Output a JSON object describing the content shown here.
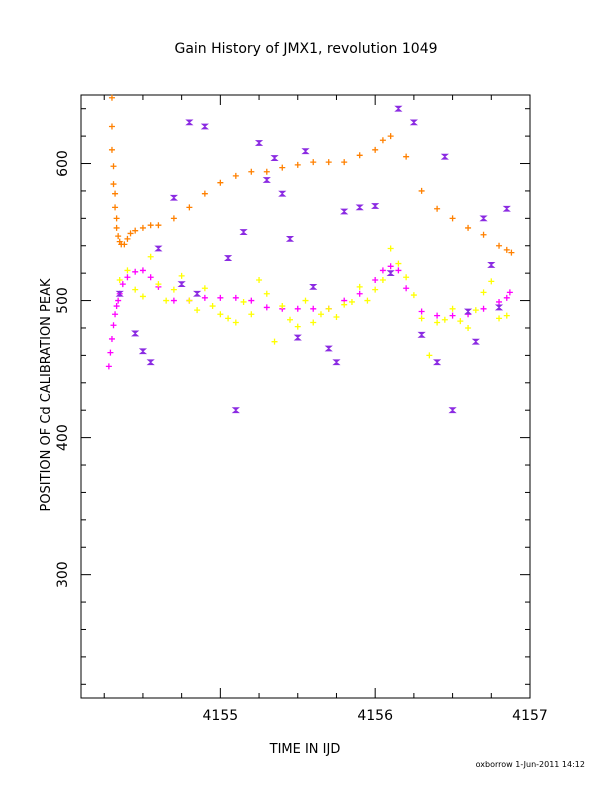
{
  "chart_data": {
    "type": "scatter",
    "title": "Gain History of JMX1, revolution 1049",
    "xlabel": "TIME IN IJD",
    "ylabel": "POSITION OF Cd CALIBRATION PEAK",
    "xlim": [
      4154.1,
      4157.0
    ],
    "ylim": [
      210,
      650
    ],
    "xticks": [
      4155,
      4156,
      4157
    ],
    "yticks": [
      300,
      400,
      500,
      600
    ],
    "footer": "oxborrow  1-Jun-2011 14:12",
    "series": [
      {
        "color": "#ff8000",
        "marker": "plus",
        "x": [
          4154.3,
          4154.3,
          4154.3,
          4154.31,
          4154.31,
          4154.32,
          4154.32,
          4154.33,
          4154.33,
          4154.34,
          4154.35,
          4154.36,
          4154.38,
          4154.4,
          4154.42,
          4154.45,
          4154.5,
          4154.55,
          4154.6,
          4154.7,
          4154.8,
          4154.9,
          4155.0,
          4155.1,
          4155.2,
          4155.3,
          4155.4,
          4155.5,
          4155.6,
          4155.7,
          4155.8,
          4155.9,
          4156.0,
          4156.05,
          4156.1,
          4156.2,
          4156.3,
          4156.4,
          4156.5,
          4156.6,
          4156.7,
          4156.8,
          4156.85,
          4156.88
        ],
        "y": [
          648,
          627,
          610,
          598,
          585,
          578,
          568,
          560,
          553,
          547,
          543,
          541,
          541,
          545,
          549,
          551,
          553,
          555,
          555,
          560,
          568,
          578,
          586,
          591,
          594,
          594,
          597,
          599,
          601,
          601,
          601,
          606,
          610,
          617,
          620,
          605,
          580,
          567,
          560,
          553,
          548,
          540,
          537,
          535
        ]
      },
      {
        "color": "#ff00ff",
        "marker": "plus",
        "x": [
          4154.28,
          4154.29,
          4154.3,
          4154.31,
          4154.32,
          4154.33,
          4154.34,
          4154.35,
          4154.37,
          4154.4,
          4154.45,
          4154.5,
          4154.55,
          4154.6,
          4154.7,
          4154.8,
          4154.9,
          4155.0,
          4155.1,
          4155.2,
          4155.3,
          4155.4,
          4155.5,
          4155.6,
          4155.7,
          4155.8,
          4155.9,
          4156.0,
          4156.05,
          4156.1,
          4156.15,
          4156.2,
          4156.3,
          4156.4,
          4156.5,
          4156.6,
          4156.7,
          4156.8,
          4156.85,
          4156.87
        ],
        "y": [
          452,
          462,
          472,
          482,
          490,
          496,
          500,
          505,
          512,
          517,
          521,
          522,
          517,
          510,
          500,
          500,
          502,
          502,
          502,
          500,
          495,
          494,
          494,
          494,
          494,
          500,
          505,
          515,
          522,
          525,
          522,
          509,
          492,
          489,
          489,
          490,
          494,
          499,
          502,
          506
        ]
      },
      {
        "color": "#ffff00",
        "marker": "plus",
        "x": [
          4154.35,
          4154.4,
          4154.45,
          4154.5,
          4154.55,
          4154.6,
          4154.65,
          4154.7,
          4154.75,
          4154.8,
          4154.85,
          4154.9,
          4154.95,
          4155.0,
          4155.05,
          4155.1,
          4155.15,
          4155.2,
          4155.25,
          4155.3,
          4155.35,
          4155.4,
          4155.45,
          4155.5,
          4155.55,
          4155.6,
          4155.65,
          4155.7,
          4155.75,
          4155.8,
          4155.85,
          4155.9,
          4155.95,
          4156.0,
          4156.05,
          4156.1,
          4156.15,
          4156.2,
          4156.25,
          4156.3,
          4156.35,
          4156.4,
          4156.45,
          4156.5,
          4156.55,
          4156.6,
          4156.65,
          4156.7,
          4156.75,
          4156.8,
          4156.85
        ],
        "y": [
          515,
          522,
          508,
          503,
          532,
          512,
          500,
          508,
          518,
          500,
          493,
          509,
          496,
          490,
          487,
          484,
          499,
          490,
          515,
          505,
          470,
          496,
          486,
          481,
          500,
          484,
          490,
          494,
          488,
          497,
          499,
          510,
          500,
          508,
          515,
          538,
          527,
          517,
          504,
          487,
          460,
          484,
          486,
          494,
          485,
          480,
          493,
          506,
          514,
          487,
          489
        ]
      },
      {
        "color": "#8b2be2",
        "marker": "bowtie",
        "x": [
          4154.35,
          4154.45,
          4154.5,
          4154.55,
          4154.6,
          4154.7,
          4154.75,
          4154.8,
          4154.85,
          4154.9,
          4155.05,
          4155.1,
          4155.15,
          4155.25,
          4155.3,
          4155.35,
          4155.4,
          4155.45,
          4155.5,
          4155.55,
          4155.6,
          4155.7,
          4155.75,
          4155.8,
          4155.9,
          4156.0,
          4156.1,
          4156.15,
          4156.25,
          4156.3,
          4156.4,
          4156.45,
          4156.5,
          4156.6,
          4156.65,
          4156.7,
          4156.75,
          4156.8,
          4156.85
        ],
        "y": [
          505,
          476,
          463,
          455,
          538,
          575,
          512,
          630,
          505,
          627,
          531,
          420,
          550,
          615,
          588,
          604,
          578,
          545,
          473,
          609,
          510,
          465,
          455,
          565,
          568,
          569,
          520,
          640,
          630,
          475,
          455,
          605,
          420,
          492,
          470,
          560,
          526,
          495,
          567
        ]
      }
    ]
  }
}
